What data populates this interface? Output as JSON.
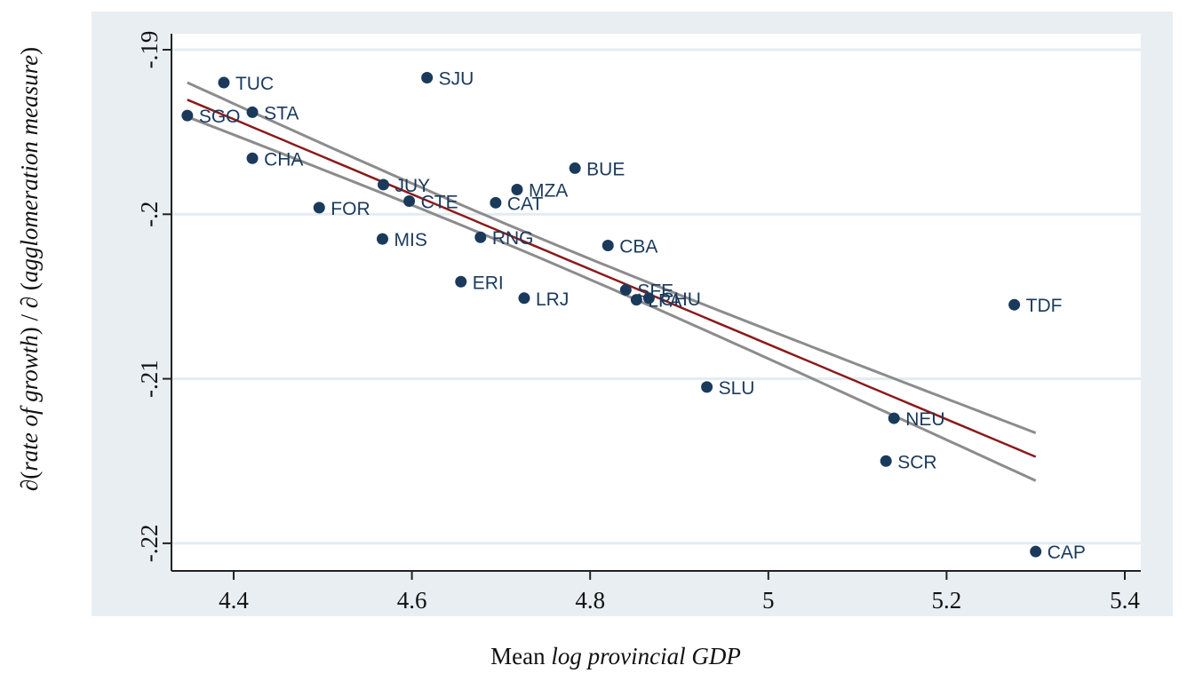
{
  "chart_data": {
    "type": "scatter",
    "title": "",
    "xlabel": {
      "plain": "Mean ",
      "italic": "log provincial GDP"
    },
    "ylabel": {
      "prefix": "∂(",
      "italic1": "rate of growth",
      "mid": ") / ∂ (",
      "italic2": "agglomeration measure",
      "suffix": ")"
    },
    "xlim": [
      4.33,
      5.415
    ],
    "ylim": [
      -0.2217,
      -0.189
    ],
    "x_ticks": [
      4.4,
      4.6,
      4.8,
      5.0,
      5.2,
      5.4
    ],
    "x_tick_labels": [
      "4.4",
      "4.6",
      "4.8",
      "5",
      "5.2",
      "5.4"
    ],
    "y_ticks": [
      -0.19,
      -0.2,
      -0.21,
      -0.22
    ],
    "y_tick_labels": [
      "-.19",
      "-.2",
      "-.21",
      "-.22"
    ],
    "grid": "horizontal",
    "legend": "none",
    "colors": {
      "outer_panel": "#e8eef2",
      "plot_bg": "#ffffff",
      "grid": "#e3ecf1",
      "marker": "#1a3a5c",
      "fit_line": "#8b1a1a",
      "ci_band": "#8c8c8c",
      "axis": "#222222"
    },
    "points": [
      {
        "label": "TUC",
        "x": 4.389,
        "y": -0.192
      },
      {
        "label": "SJU",
        "x": 4.617,
        "y": -0.1917
      },
      {
        "label": "SGO",
        "x": 4.348,
        "y": -0.194
      },
      {
        "label": "STA",
        "x": 4.421,
        "y": -0.1938
      },
      {
        "label": "CHA",
        "x": 4.421,
        "y": -0.1966
      },
      {
        "label": "JUY",
        "x": 4.568,
        "y": -0.1982
      },
      {
        "label": "CTE",
        "x": 4.597,
        "y": -0.1992
      },
      {
        "label": "FOR",
        "x": 4.496,
        "y": -0.1996
      },
      {
        "label": "MIS",
        "x": 4.567,
        "y": -0.2015
      },
      {
        "label": "RNG",
        "x": 4.677,
        "y": -0.2014
      },
      {
        "label": "CAT",
        "x": 4.694,
        "y": -0.1993
      },
      {
        "label": "MZA",
        "x": 4.718,
        "y": -0.1985
      },
      {
        "label": "BUE",
        "x": 4.783,
        "y": -0.1972
      },
      {
        "label": "CBA",
        "x": 4.82,
        "y": -0.2019
      },
      {
        "label": "ERI",
        "x": 4.655,
        "y": -0.2041
      },
      {
        "label": "LRJ",
        "x": 4.726,
        "y": -0.2051
      },
      {
        "label": "SFE",
        "x": 4.84,
        "y": -0.2046
      },
      {
        "label": "LPA",
        "x": 4.852,
        "y": -0.2052
      },
      {
        "label": "CHU",
        "x": 4.866,
        "y": -0.2051
      },
      {
        "label": "SLU",
        "x": 4.931,
        "y": -0.2105
      },
      {
        "label": "NEU",
        "x": 5.141,
        "y": -0.2124
      },
      {
        "label": "SCR",
        "x": 5.132,
        "y": -0.215
      },
      {
        "label": "TDF",
        "x": 5.276,
        "y": -0.2055
      },
      {
        "label": "CAP",
        "x": 5.3,
        "y": -0.2205
      }
    ],
    "fit": {
      "type": "linear",
      "x_range": [
        4.348,
        5.3
      ],
      "anchor_x": 4.706,
      "anchor_y": -0.2012,
      "slope": -0.0228,
      "ci": {
        "center_x": 4.72,
        "var_const": 3.6e-07,
        "var_quad": 5.2e-06
      }
    }
  }
}
